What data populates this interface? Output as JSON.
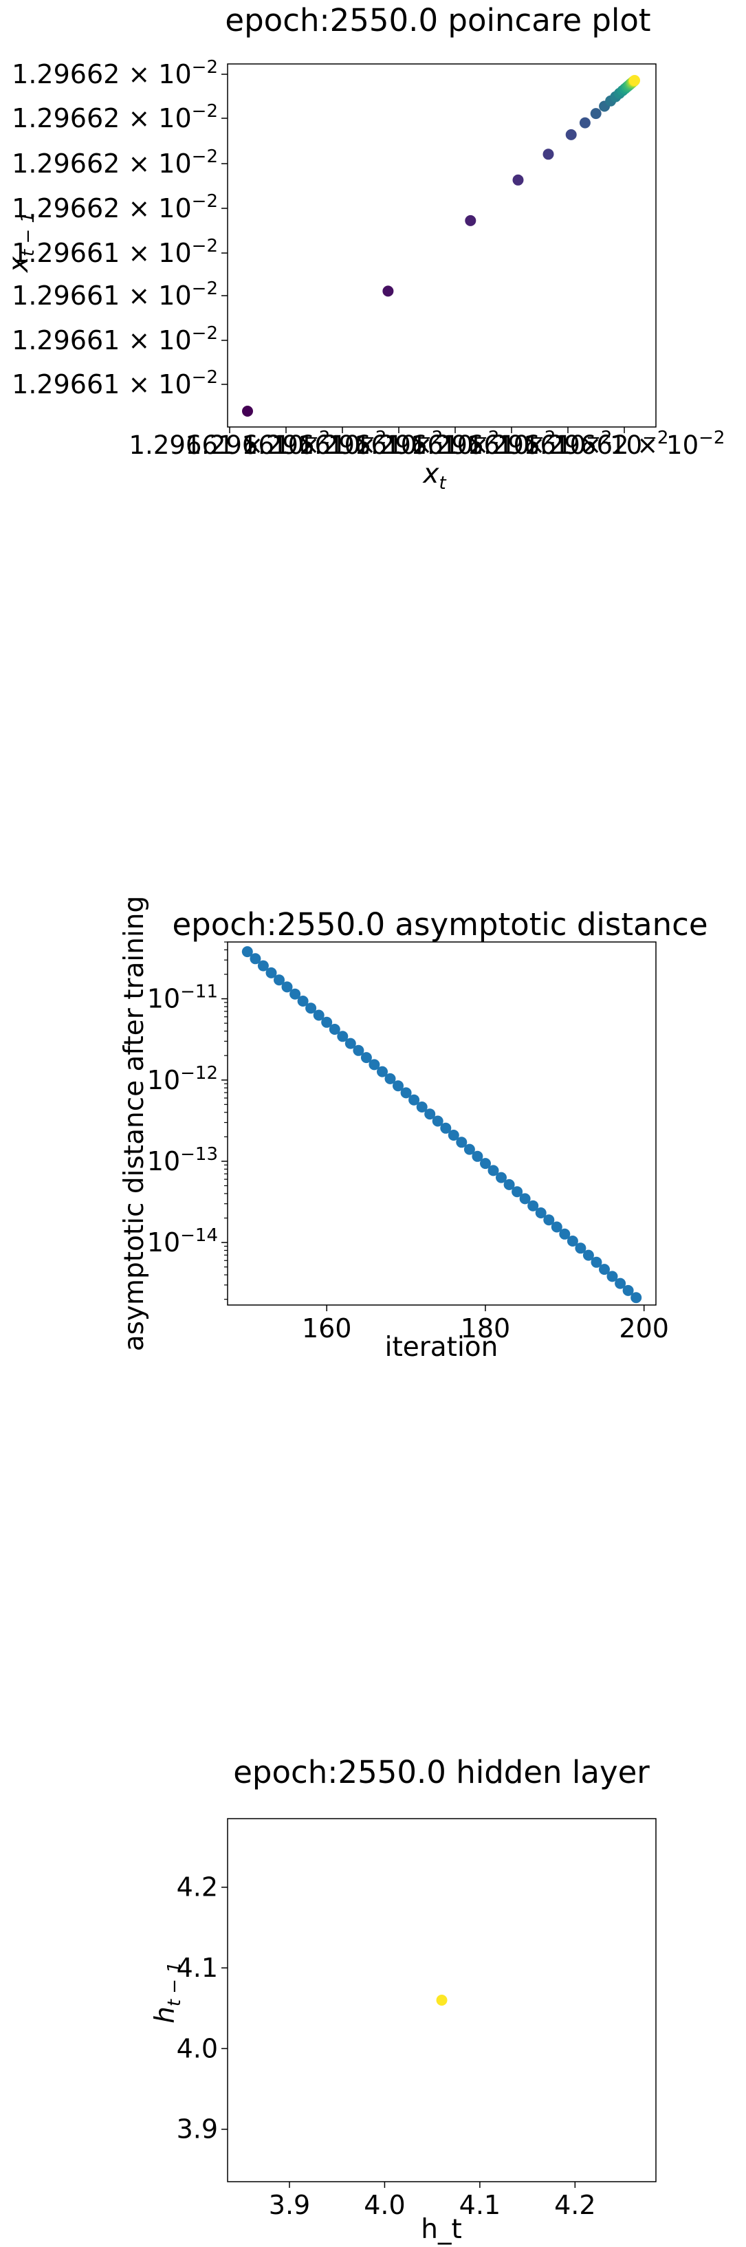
{
  "chart_data": [
    {
      "type": "scatter",
      "title": "epoch:2550.0 poincare plot",
      "xlabel": {
        "base": "x",
        "sub": "t"
      },
      "ylabel": {
        "base": "x",
        "sub": "t − 1"
      },
      "grid": false,
      "colormap": "viridis",
      "x_tick_mantissa": "1.29661",
      "y_tick_labels": [
        {
          "mantissa": "1.29661",
          "exp": "−2"
        },
        {
          "mantissa": "1.29661",
          "exp": "−2"
        },
        {
          "mantissa": "1.29661",
          "exp": "−2"
        },
        {
          "mantissa": "1.29661",
          "exp": "−2"
        },
        {
          "mantissa": "1.29662",
          "exp": "−2"
        },
        {
          "mantissa": "1.29662",
          "exp": "−2"
        },
        {
          "mantissa": "1.29662",
          "exp": "−2"
        },
        {
          "mantissa": "1.29662",
          "exp": "−2"
        }
      ],
      "x_tick_labels": [
        {
          "mantissa": "1.29661",
          "exp": "−2"
        },
        {
          "mantissa": "1.29661",
          "exp": "−2"
        },
        {
          "mantissa": "1.29661",
          "exp": "−2"
        },
        {
          "mantissa": "1.29661",
          "exp": "−2"
        },
        {
          "mantissa": "1.29661",
          "exp": "−2"
        },
        {
          "mantissa": "1.29661",
          "exp": "−2"
        },
        {
          "mantissa": "1.29661",
          "exp": "−2"
        },
        {
          "mantissa": "1.29662",
          "exp": "−2"
        }
      ],
      "point_fractions": [
        0,
        0.363,
        0.576,
        0.699,
        0.777,
        0.836,
        0.872,
        0.9,
        0.922,
        0.938,
        0.951,
        0.961,
        0.969,
        0.975,
        0.98,
        0.984,
        0.988,
        0.991,
        0.993,
        0.995,
        0.997,
        0.998,
        0.999,
        1.0
      ]
    },
    {
      "type": "scatter",
      "title": "epoch:2550.0 asymptotic distance",
      "xlabel": "iteration",
      "ylabel": "asymptotic distance after training",
      "yscale": "log",
      "grid": false,
      "color": "#1f77b4",
      "xlim": [
        147.5,
        201.5
      ],
      "ylim": [
        1.7e-15,
        5e-11
      ],
      "x_ticks": [
        160,
        180,
        200
      ],
      "y_ticks": [
        -11,
        -12,
        -13,
        -14
      ],
      "y_tick_base": "10",
      "x_start": 150,
      "x_end": 199,
      "y_start": 3.8e-11,
      "y_end": 2.1e-15
    },
    {
      "type": "scatter",
      "title": "epoch:2550.0 hidden layer",
      "xlabel": "h_t",
      "ylabel": {
        "base": "h",
        "sub": "t − 1"
      },
      "grid": false,
      "color": "#fde725",
      "xlim": [
        3.835,
        4.285
      ],
      "ylim": [
        3.835,
        4.285
      ],
      "x_ticks": [
        "3.9",
        "4.0",
        "4.1",
        "4.2"
      ],
      "y_ticks": [
        "3.9",
        "4.0",
        "4.1",
        "4.2"
      ],
      "points": [
        {
          "x": 4.06,
          "y": 4.06
        }
      ]
    }
  ]
}
